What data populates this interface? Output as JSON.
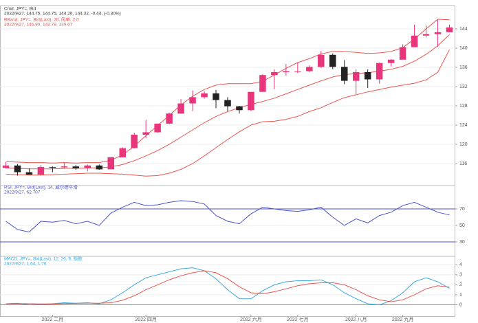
{
  "chart_data": [
    {
      "type": "candlestick",
      "title": "Cmd, JPY=, Bid",
      "subtitle": "2022/9/27, 144.75, 144.75, 144.26, 144.32, -0.44, (-0.30%)",
      "categories": [
        null,
        null,
        null,
        null,
        "2022 二月",
        null,
        null,
        null,
        null,
        null,
        null,
        null,
        "2022 四月",
        null,
        null,
        null,
        null,
        null,
        null,
        null,
        null,
        "2022 六月",
        null,
        null,
        null,
        "2022 七月",
        null,
        null,
        null,
        null,
        "2022 八月",
        null,
        null,
        null,
        "2022 九月",
        null,
        null,
        null,
        null
      ],
      "open": [
        115.1,
        115.6,
        114.2,
        113.7,
        115.3,
        115.2,
        115.4,
        115.0,
        115.6,
        114.8,
        117.3,
        119.2,
        122.0,
        122.5,
        124.3,
        126.4,
        128.5,
        129.8,
        130.6,
        129.2,
        127.9,
        127.1,
        130.9,
        134.4,
        135.0,
        135.2,
        135.2,
        136.1,
        138.6,
        136.1,
        133.2,
        135.0,
        133.5,
        136.9,
        137.6,
        140.2,
        142.6,
        142.9,
        143.3
      ],
      "high": [
        116.3,
        115.9,
        115.0,
        115.7,
        115.4,
        116.3,
        115.7,
        115.8,
        115.8,
        117.4,
        119.4,
        122.4,
        125.1,
        124.3,
        126.6,
        129.4,
        131.2,
        131.0,
        131.3,
        129.8,
        128.0,
        130.9,
        134.6,
        135.6,
        136.7,
        137.0,
        136.4,
        139.4,
        138.9,
        137.5,
        135.6,
        135.6,
        137.0,
        137.7,
        140.8,
        144.9,
        144.7,
        145.9,
        144.9
      ],
      "low": [
        115.0,
        113.5,
        113.8,
        113.5,
        114.2,
        114.9,
        114.7,
        114.4,
        114.7,
        114.8,
        117.3,
        119.1,
        121.3,
        122.4,
        124.2,
        126.4,
        126.9,
        129.5,
        127.5,
        126.9,
        126.4,
        126.9,
        130.9,
        131.5,
        134.3,
        134.8,
        135.0,
        135.9,
        135.6,
        132.5,
        130.4,
        131.7,
        132.6,
        136.2,
        137.6,
        140.2,
        142.2,
        140.3,
        143.3
      ],
      "close": [
        115.6,
        114.2,
        113.7,
        115.3,
        115.2,
        115.4,
        115.0,
        115.6,
        114.8,
        117.3,
        119.2,
        122.0,
        122.5,
        124.3,
        126.4,
        128.5,
        129.8,
        130.6,
        129.2,
        127.9,
        127.1,
        130.9,
        134.4,
        135.0,
        135.2,
        135.2,
        136.1,
        138.6,
        136.1,
        133.2,
        135.0,
        133.5,
        136.9,
        137.6,
        140.2,
        142.6,
        142.9,
        143.3,
        144.3
      ],
      "up_color": "#e8357c",
      "down_color": "#222222",
      "bands": {
        "name": "BBand, JPY=, Bid(Last), 20, 简单, 2.0",
        "summary": "2022/9/27, 145.90, 142.79, 139.67",
        "color": "#e8554e",
        "upper": [
          116.4,
          116.3,
          116.2,
          116.2,
          116.1,
          116.2,
          116.1,
          116.2,
          116.2,
          116.7,
          117.8,
          119.6,
          121.8,
          123.9,
          126.0,
          128.2,
          130.0,
          131.4,
          132.3,
          132.6,
          132.6,
          132.6,
          133.1,
          134.4,
          135.8,
          137.0,
          137.8,
          138.8,
          139.3,
          139.3,
          139.1,
          138.9,
          139.0,
          139.3,
          140.1,
          141.9,
          144.0,
          146.0,
          145.9
        ],
        "middle": [
          115.1,
          115.0,
          114.9,
          114.9,
          114.9,
          115.0,
          115.0,
          115.1,
          115.1,
          115.3,
          115.8,
          116.6,
          117.6,
          118.7,
          120.0,
          121.5,
          123.0,
          124.5,
          125.8,
          126.8,
          127.6,
          128.3,
          128.9,
          129.6,
          130.5,
          131.4,
          132.3,
          133.2,
          134.0,
          134.5,
          134.7,
          134.9,
          135.2,
          135.6,
          136.2,
          137.3,
          138.7,
          140.5,
          142.79
        ],
        "lower": [
          113.8,
          113.7,
          113.6,
          113.6,
          113.7,
          113.8,
          113.9,
          114.0,
          114.0,
          113.9,
          113.8,
          113.6,
          113.4,
          113.5,
          114.0,
          114.8,
          116.0,
          117.6,
          119.3,
          121.0,
          122.6,
          124.0,
          124.7,
          124.8,
          125.2,
          125.8,
          126.8,
          127.6,
          128.7,
          129.7,
          130.3,
          130.9,
          131.4,
          131.9,
          132.3,
          132.7,
          133.4,
          135.0,
          139.67
        ]
      },
      "ylim": [
        112,
        148
      ],
      "yticks": [
        116,
        120,
        124,
        128,
        132,
        136,
        140,
        144
      ],
      "grid": true
    },
    {
      "type": "line",
      "title": "RSI, JPY=, Bid(Last), 14, 威尔德平滑",
      "subtitle": "2022/9/27, 62.707",
      "series": [
        {
          "name": "RSI",
          "color": "#4a52c9",
          "values": [
            55,
            45,
            42,
            55,
            54,
            56,
            52,
            55,
            50,
            65,
            72,
            78,
            74,
            75,
            78,
            80,
            79,
            76,
            62,
            55,
            52,
            64,
            72,
            70,
            68,
            67,
            69,
            72,
            60,
            50,
            58,
            53,
            62,
            66,
            74,
            78,
            72,
            66,
            62.707
          ]
        }
      ],
      "levels": [
        30,
        70
      ],
      "level_color": "#4a52c9",
      "ylim": [
        15,
        95
      ],
      "yticks": [
        30,
        50,
        70
      ],
      "grid": true
    },
    {
      "type": "line",
      "title": "MACD, JPY=, Bid(Last), 12, 26, 9, 指数",
      "subtitle": "2022/9/27, 1.64, 1.76",
      "series": [
        {
          "name": "MACD",
          "color": "#3aa9e0",
          "values": [
            0.1,
            0.15,
            0.0,
            0.05,
            0.1,
            0.2,
            0.15,
            0.2,
            0.1,
            0.5,
            1.2,
            2.0,
            2.7,
            3.0,
            3.3,
            3.6,
            3.7,
            3.4,
            2.6,
            1.5,
            0.6,
            0.6,
            1.4,
            2.0,
            2.3,
            2.4,
            2.4,
            2.5,
            2.0,
            1.2,
            0.6,
            0.1,
            0.0,
            0.4,
            1.2,
            2.3,
            2.7,
            2.3,
            1.64
          ]
        },
        {
          "name": "Signal",
          "color": "#e8554e",
          "values": [
            0.1,
            0.12,
            0.1,
            0.08,
            0.08,
            0.12,
            0.14,
            0.16,
            0.15,
            0.2,
            0.45,
            0.9,
            1.5,
            2.0,
            2.5,
            2.9,
            3.2,
            3.4,
            3.2,
            2.6,
            1.8,
            1.2,
            1.1,
            1.3,
            1.6,
            1.9,
            2.1,
            2.2,
            2.2,
            2.0,
            1.5,
            0.9,
            0.5,
            0.3,
            0.5,
            1.0,
            1.6,
            1.9,
            1.76
          ]
        }
      ],
      "levels": [
        0
      ],
      "level_color": "#3aa9e0",
      "ylim": [
        -1,
        4.5
      ],
      "yticks": [
        0,
        1,
        2,
        3,
        4
      ],
      "grid": true
    }
  ]
}
